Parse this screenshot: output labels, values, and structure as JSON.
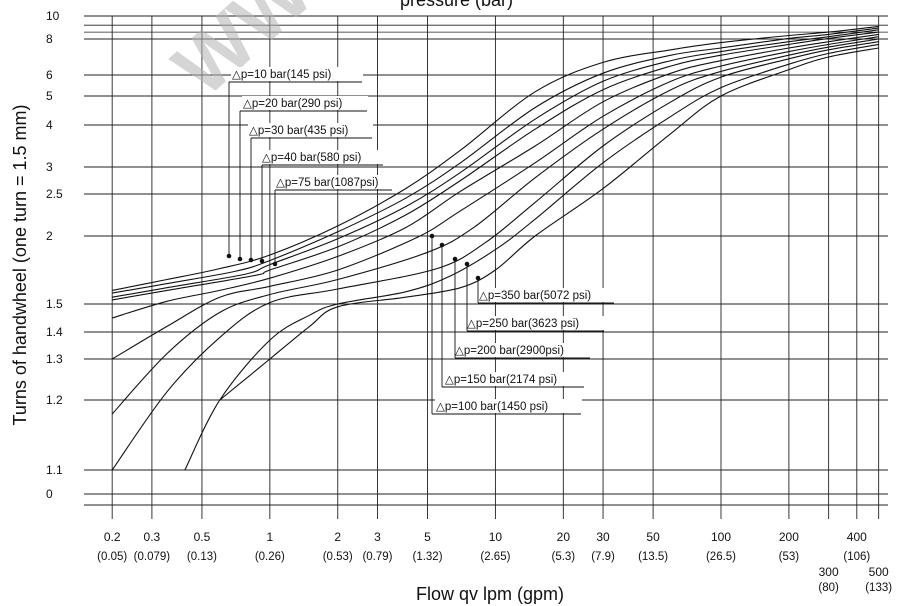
{
  "chart_data": {
    "type": "line",
    "title": "",
    "top_title_fragment": "pressure (bar)",
    "xlabel": "Flow qv  lpm (gpm)",
    "ylabel": "Turns of handwheel (one turn = 1.5 mm)",
    "x_scale": "log",
    "xlim": [
      0.15,
      550
    ],
    "y_ticks": [
      {
        "label": "10",
        "value": 10
      },
      {
        "label": "8",
        "value": 8
      },
      {
        "label": "6",
        "value": 6
      },
      {
        "label": "5",
        "value": 5
      },
      {
        "label": "4",
        "value": 4
      },
      {
        "label": "3",
        "value": 3
      },
      {
        "label": "2.5",
        "value": 2.5
      },
      {
        "label": "2",
        "value": 2
      },
      {
        "label": "1.5",
        "value": 1.5
      },
      {
        "label": "1.4",
        "value": 1.4
      },
      {
        "label": "1.3",
        "value": 1.3
      },
      {
        "label": "1.2",
        "value": 1.2
      },
      {
        "label": "1.1",
        "value": 1.1
      },
      {
        "label": "0",
        "value": 0
      }
    ],
    "x_ticks": [
      {
        "value": 0.2,
        "label": "0.2",
        "sub": "(0.05)"
      },
      {
        "value": 0.3,
        "label": "0.3",
        "sub": "(0.079)"
      },
      {
        "value": 0.5,
        "label": "0.5",
        "sub": "(0.13)"
      },
      {
        "value": 1,
        "label": "1",
        "sub": "(0.26)"
      },
      {
        "value": 2,
        "label": "2",
        "sub": "(0.53)"
      },
      {
        "value": 3,
        "label": "3",
        "sub": "(0.79)"
      },
      {
        "value": 5,
        "label": "5",
        "sub": "(1.32)"
      },
      {
        "value": 10,
        "label": "10",
        "sub": "(2.65)"
      },
      {
        "value": 20,
        "label": "20",
        "sub": "(5.3)"
      },
      {
        "value": 30,
        "label": "30",
        "sub": "(7.9)"
      },
      {
        "value": 50,
        "label": "50",
        "sub": "(13.5)"
      },
      {
        "value": 100,
        "label": "100",
        "sub": "(26.5)"
      },
      {
        "value": 200,
        "label": "200",
        "sub": "(53)"
      },
      {
        "value": 300,
        "label": "300",
        "sub": "(80)",
        "low": true
      },
      {
        "value": 400,
        "label": "400",
        "sub": "(106)"
      },
      {
        "value": 500,
        "label": "500",
        "sub": "(133)",
        "low": true
      }
    ],
    "series": [
      {
        "name": "△p=10 bar(145 psi)",
        "x": [
          0.2,
          0.35,
          0.6,
          1,
          2,
          4,
          7,
          15,
          30,
          60,
          100,
          200,
          300,
          500
        ],
        "y": [
          1.6,
          1.68,
          1.76,
          1.86,
          2.12,
          2.6,
          3.4,
          5.2,
          6.7,
          7.4,
          7.8,
          8.3,
          8.6,
          9.1
        ]
      },
      {
        "name": "△p=20 bar(290 psi)",
        "x": [
          0.2,
          0.35,
          0.7,
          1,
          2,
          4,
          7,
          15,
          30,
          60,
          100,
          200,
          300,
          500
        ],
        "y": [
          1.58,
          1.65,
          1.74,
          1.82,
          2.05,
          2.45,
          3.1,
          4.6,
          6.1,
          7.1,
          7.5,
          8.05,
          8.4,
          8.95
        ]
      },
      {
        "name": "△p=30 bar(435 psi)",
        "x": [
          0.2,
          0.35,
          0.78,
          1,
          2,
          4,
          7,
          15,
          30,
          60,
          100,
          200,
          300,
          500
        ],
        "y": [
          1.55,
          1.62,
          1.72,
          1.79,
          1.98,
          2.35,
          2.9,
          4.2,
          5.7,
          6.8,
          7.3,
          7.85,
          8.2,
          8.8
        ]
      },
      {
        "name": "△p=40 bar(580 psi)",
        "x": [
          0.2,
          0.35,
          0.86,
          1,
          2,
          4,
          7,
          15,
          30,
          60,
          100,
          200,
          300,
          500
        ],
        "y": [
          1.53,
          1.6,
          1.71,
          1.75,
          1.92,
          2.25,
          2.75,
          3.9,
          5.3,
          6.5,
          7.1,
          7.7,
          8.05,
          8.6
        ]
      },
      {
        "name": "△p=75 bar(1087psi)",
        "x": [
          0.2,
          0.35,
          0.6,
          1,
          2,
          4,
          7,
          15,
          30,
          60,
          100,
          200,
          300,
          500
        ],
        "y": [
          1.45,
          1.52,
          1.6,
          1.69,
          1.85,
          2.1,
          2.55,
          3.5,
          4.8,
          6.1,
          6.8,
          7.5,
          7.85,
          8.4
        ]
      },
      {
        "name": "△p=100 bar(1450 psi)",
        "x": [
          0.2,
          0.35,
          0.6,
          1,
          2,
          4.5,
          7,
          15,
          30,
          60,
          100,
          200,
          300,
          500
        ],
        "y": [
          1.3,
          1.42,
          1.55,
          1.63,
          1.75,
          1.99,
          2.3,
          3.1,
          4.3,
          5.7,
          6.5,
          7.3,
          7.7,
          8.2
        ]
      },
      {
        "name": "△p=150 bar(2174 psi)",
        "x": [
          0.2,
          0.35,
          0.6,
          1,
          2,
          5,
          8,
          15,
          30,
          60,
          100,
          200,
          300,
          500
        ],
        "y": [
          1.18,
          1.32,
          1.47,
          1.57,
          1.68,
          1.88,
          2.1,
          2.8,
          3.9,
          5.3,
          6.2,
          7.1,
          7.55,
          8.0
        ]
      },
      {
        "name": "△p=200 bar(2900psi)",
        "x": [
          0.2,
          0.35,
          0.6,
          1,
          2,
          5.5,
          9,
          15,
          30,
          60,
          100,
          200,
          300,
          500
        ],
        "y": [
          1.1,
          1.22,
          1.38,
          1.51,
          1.61,
          1.76,
          1.95,
          2.4,
          3.5,
          4.8,
          5.9,
          6.9,
          7.4,
          7.85
        ]
      },
      {
        "name": "△p=250 bar(3623 psi)",
        "x": [
          0.42,
          0.6,
          1,
          1.5,
          2,
          4,
          6.2,
          10,
          15,
          30,
          60,
          100,
          200,
          300,
          500
        ],
        "y": [
          1.1,
          1.2,
          1.37,
          1.46,
          1.5,
          1.59,
          1.7,
          1.9,
          2.2,
          3.1,
          4.3,
          5.4,
          6.6,
          7.2,
          7.7
        ]
      },
      {
        "name": "△p=350 bar(5072 psi)",
        "x": [
          0.6,
          1,
          1.5,
          2,
          4,
          7,
          10,
          15,
          30,
          60,
          100,
          200,
          300,
          500
        ],
        "y": [
          1.2,
          1.3,
          1.42,
          1.49,
          1.55,
          1.62,
          1.75,
          2.0,
          2.6,
          3.8,
          5.0,
          6.3,
          7.0,
          7.5
        ]
      }
    ],
    "grid": true,
    "legend": "callout labels on curves"
  },
  "watermark": "WW"
}
